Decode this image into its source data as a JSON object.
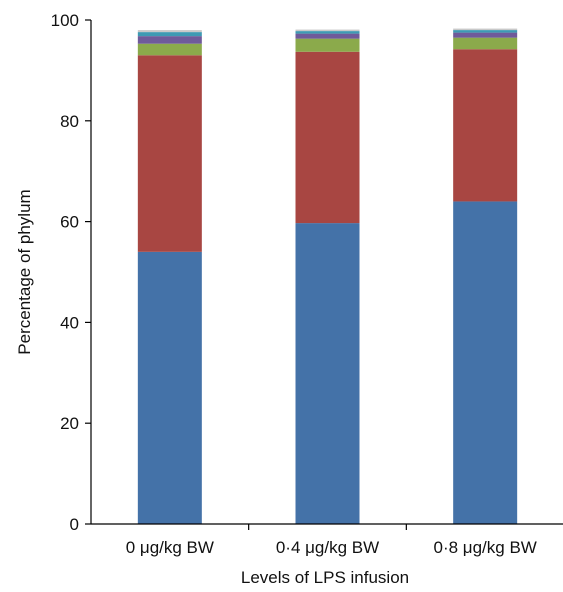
{
  "chart_data": {
    "type": "bar",
    "stacked": true,
    "title": "",
    "xlabel": "Levels of LPS infusion",
    "ylabel": "Percentage of phylum",
    "ylim": [
      0,
      100
    ],
    "yticks": [
      0,
      20,
      40,
      60,
      80,
      100
    ],
    "grid": false,
    "categories": [
      "0 μg/kg BW",
      "0·4 μg/kg BW",
      "0·8 μg/kg BW"
    ],
    "series": [
      {
        "color": "#4472A8",
        "values": [
          54.0,
          59.7,
          64.0
        ]
      },
      {
        "color": "#A84642",
        "values": [
          39.0,
          34.0,
          30.2
        ]
      },
      {
        "color": "#8BAA4B",
        "values": [
          2.3,
          2.6,
          2.3
        ]
      },
      {
        "color": "#6F5A9A",
        "values": [
          1.5,
          1.0,
          1.0
        ]
      },
      {
        "color": "#3E9AB3",
        "values": [
          0.8,
          0.5,
          0.5
        ]
      },
      {
        "color": "#C9C9C9",
        "values": [
          0.4,
          0.3,
          0.3
        ]
      }
    ]
  }
}
